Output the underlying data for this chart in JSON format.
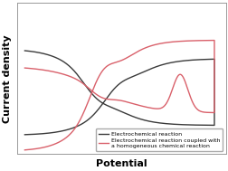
{
  "xlabel": "Potential",
  "ylabel": "Current density",
  "xlabel_fontsize": 8,
  "ylabel_fontsize": 8,
  "xlabel_fontweight": "bold",
  "ylabel_fontweight": "bold",
  "legend_labels": [
    "Electrochemical reaction",
    "Electrochemical reaction coupled with\na homogeneous chemical reaction"
  ],
  "line_colors": [
    "#3a3a3a",
    "#d9606a"
  ],
  "background_color": "#ffffff",
  "figsize": [
    2.53,
    1.89
  ],
  "dpi": 100
}
